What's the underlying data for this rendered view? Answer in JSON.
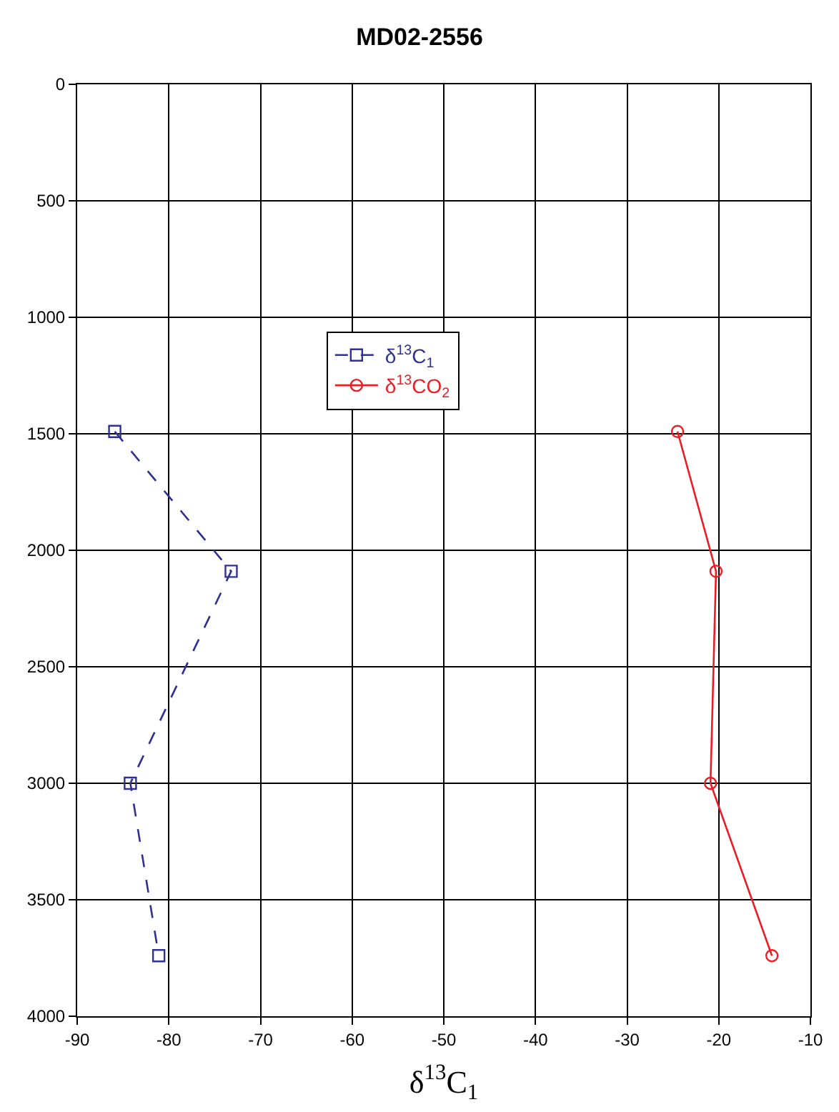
{
  "chart_data": {
    "type": "line",
    "title": "MD02-2556",
    "xlabel": "δ$^{13}$C$_{1}$",
    "xlim": [
      -90,
      -10
    ],
    "xticks": [
      -90,
      -80,
      -70,
      -60,
      -50,
      -40,
      -30,
      -20,
      -10
    ],
    "ylim": [
      4000,
      0
    ],
    "yticks": [
      0,
      500,
      1000,
      1500,
      2000,
      2500,
      3000,
      3500,
      4000
    ],
    "grid": true,
    "legend": "top",
    "series": [
      {
        "name": "δ$^{13}$C$_{1}$",
        "color": "#2e3192",
        "x": [
          -85.9,
          -73.2,
          -84.2,
          -81.1
        ],
        "values": [
          1490,
          2090,
          3000,
          3740
        ],
        "marker": "square",
        "line_style": "dashed"
      },
      {
        "name": "δ$^{13}$CO$_{2}$",
        "color": "#ed1c24",
        "x": [
          -24.5,
          -20.3,
          -20.9,
          -14.2
        ],
        "values": [
          1490,
          2090,
          3000,
          3740
        ],
        "marker": "circle",
        "line_style": "solid"
      }
    ]
  }
}
